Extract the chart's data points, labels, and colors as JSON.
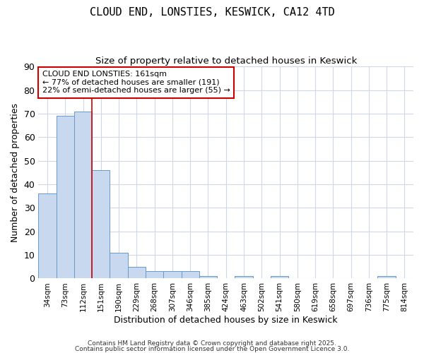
{
  "title": "CLOUD END, LONSTIES, KESWICK, CA12 4TD",
  "subtitle": "Size of property relative to detached houses in Keswick",
  "xlabel": "Distribution of detached houses by size in Keswick",
  "ylabel": "Number of detached properties",
  "bar_labels": [
    "34sqm",
    "73sqm",
    "112sqm",
    "151sqm",
    "190sqm",
    "229sqm",
    "268sqm",
    "307sqm",
    "346sqm",
    "385sqm",
    "424sqm",
    "463sqm",
    "502sqm",
    "541sqm",
    "580sqm",
    "619sqm",
    "658sqm",
    "697sqm",
    "736sqm",
    "775sqm",
    "814sqm"
  ],
  "bar_values": [
    36,
    69,
    71,
    46,
    11,
    5,
    3,
    3,
    3,
    1,
    0,
    1,
    0,
    1,
    0,
    0,
    0,
    0,
    0,
    1,
    0
  ],
  "bar_color": "#c8d8ee",
  "bar_edge_color": "#6699cc",
  "background_color": "#ffffff",
  "grid_color": "#d0d8e8",
  "red_line_x": 2.5,
  "annotation_text": "CLOUD END LONSTIES: 161sqm\n← 77% of detached houses are smaller (191)\n22% of semi-detached houses are larger (55) →",
  "annotation_box_color": "#ffffff",
  "annotation_box_edge_color": "#cc0000",
  "ylim": [
    0,
    90
  ],
  "yticks": [
    0,
    10,
    20,
    30,
    40,
    50,
    60,
    70,
    80,
    90
  ],
  "footer_line1": "Contains HM Land Registry data © Crown copyright and database right 2025.",
  "footer_line2": "Contains public sector information licensed under the Open Government Licence 3.0."
}
